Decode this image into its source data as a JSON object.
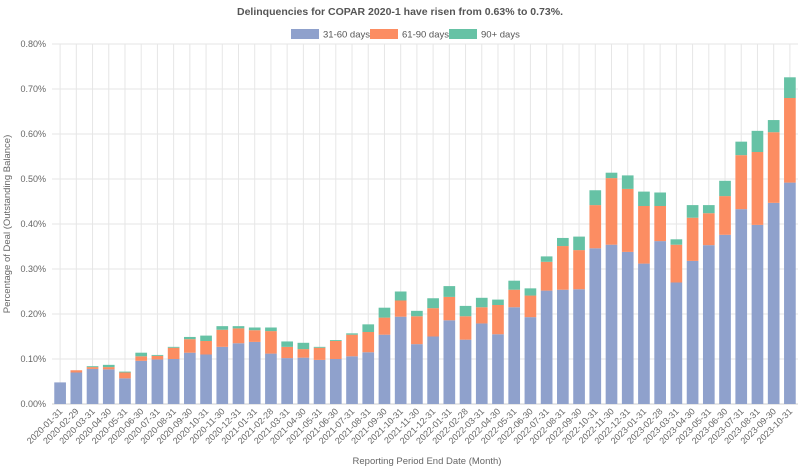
{
  "chart_data": {
    "type": "bar",
    "stacked": true,
    "title": "Delinquencies for COPAR 2020-1 have risen from 0.63% to 0.73%.",
    "xlabel": "Reporting Period End Date (Month)",
    "ylabel": "Percentage of Deal (Outstanding Balance)",
    "ylim": [
      0,
      0.8
    ],
    "yticks": [
      "0.00%",
      "0.10%",
      "0.20%",
      "0.30%",
      "0.40%",
      "0.50%",
      "0.60%",
      "0.70%",
      "0.80%"
    ],
    "grid": true,
    "legend_position": "top-center",
    "categories": [
      "2020-01-31",
      "2020-02-29",
      "2020-03-31",
      "2020-04-30",
      "2020-05-31",
      "2020-06-30",
      "2020-07-31",
      "2020-08-31",
      "2020-09-30",
      "2020-10-31",
      "2020-11-30",
      "2020-12-31",
      "2021-01-31",
      "2021-02-28",
      "2021-03-31",
      "2021-04-30",
      "2021-05-31",
      "2021-06-30",
      "2021-07-31",
      "2021-08-31",
      "2021-09-30",
      "2021-10-31",
      "2021-11-30",
      "2021-12-31",
      "2022-01-31",
      "2022-02-28",
      "2022-03-31",
      "2022-04-30",
      "2022-05-31",
      "2022-06-30",
      "2022-07-31",
      "2022-08-31",
      "2022-09-30",
      "2022-10-31",
      "2022-11-30",
      "2022-12-31",
      "2023-01-31",
      "2023-02-28",
      "2023-03-31",
      "2023-04-30",
      "2023-05-31",
      "2023-06-30",
      "2023-07-31",
      "2023-08-31",
      "2023-09-30",
      "2023-10-31"
    ],
    "series": [
      {
        "name": "31-60 days",
        "color": "#8fa1cc",
        "values": [
          0.048,
          0.07,
          0.078,
          0.077,
          0.057,
          0.096,
          0.099,
          0.1,
          0.114,
          0.11,
          0.127,
          0.135,
          0.138,
          0.112,
          0.102,
          0.103,
          0.098,
          0.1,
          0.106,
          0.115,
          0.154,
          0.194,
          0.133,
          0.15,
          0.186,
          0.143,
          0.179,
          0.155,
          0.215,
          0.193,
          0.252,
          0.254,
          0.255,
          0.346,
          0.354,
          0.338,
          0.312,
          0.362,
          0.27,
          0.318,
          0.353,
          0.376,
          0.433,
          0.398,
          0.447,
          0.492
        ]
      },
      {
        "name": "61-90 days",
        "color": "#fc8d62",
        "values": [
          0.0,
          0.005,
          0.004,
          0.005,
          0.013,
          0.01,
          0.008,
          0.025,
          0.03,
          0.03,
          0.038,
          0.033,
          0.026,
          0.05,
          0.025,
          0.019,
          0.027,
          0.04,
          0.048,
          0.045,
          0.038,
          0.036,
          0.062,
          0.063,
          0.052,
          0.052,
          0.036,
          0.065,
          0.039,
          0.048,
          0.064,
          0.097,
          0.087,
          0.096,
          0.148,
          0.14,
          0.128,
          0.078,
          0.084,
          0.096,
          0.071,
          0.086,
          0.12,
          0.162,
          0.157,
          0.188
        ]
      },
      {
        "name": "90+ days",
        "color": "#66c2a5",
        "values": [
          0.0,
          0.0,
          0.002,
          0.005,
          0.002,
          0.008,
          0.002,
          0.002,
          0.005,
          0.012,
          0.008,
          0.005,
          0.006,
          0.008,
          0.012,
          0.014,
          0.002,
          0.002,
          0.003,
          0.017,
          0.022,
          0.02,
          0.012,
          0.022,
          0.024,
          0.023,
          0.021,
          0.012,
          0.02,
          0.016,
          0.012,
          0.018,
          0.03,
          0.033,
          0.012,
          0.03,
          0.032,
          0.03,
          0.012,
          0.028,
          0.018,
          0.034,
          0.03,
          0.047,
          0.027,
          0.046
        ]
      }
    ]
  }
}
